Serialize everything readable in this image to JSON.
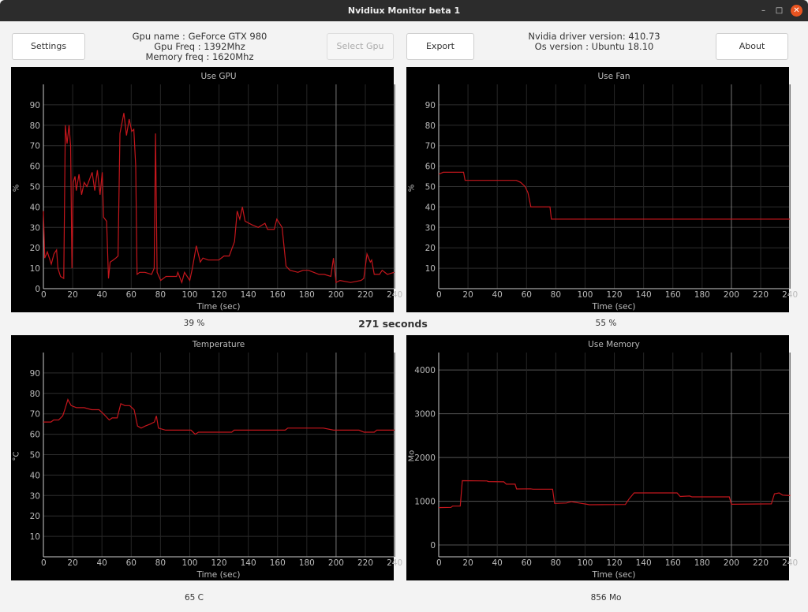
{
  "window": {
    "title": "Nvidiux Monitor beta 1",
    "minimize": "–",
    "maximize": "□",
    "close": "✕"
  },
  "toolbar": {
    "settings": "Settings",
    "select_gpu": "Select Gpu",
    "export": "Export",
    "about": "About"
  },
  "gpu_info": {
    "name": "Gpu name : GeForce GTX 980",
    "freq": "Gpu Freq : 1392Mhz",
    "mem_freq": "Memory freq : 1620Mhz"
  },
  "system_info": {
    "driver": "Nvidia driver version: 410.73",
    "os": "Os version : Ubuntu 18.10"
  },
  "elapsed": "271 seconds",
  "readouts": {
    "gpu": "39 %",
    "fan": "55 %",
    "temperature": "65 C",
    "memory": "856 Mo"
  },
  "line_color": "#c4161c",
  "chart_data": [
    {
      "type": "line",
      "title": "Use GPU",
      "xlabel": "Time (sec)",
      "ylabel": "%",
      "xlim": [
        0,
        239.4
      ],
      "ylim": [
        0,
        100
      ],
      "xticks": [
        "0",
        "20",
        "40",
        "60",
        "80",
        "100",
        "120",
        "140",
        "160",
        "180",
        "200",
        "220",
        "240"
      ],
      "yticks": [
        "0",
        "10",
        "20",
        "30",
        "40",
        "50",
        "60",
        "70",
        "80",
        "90"
      ],
      "ytick_values": [
        0,
        10,
        20,
        30,
        40,
        50,
        60,
        70,
        80,
        90
      ],
      "grid": true,
      "points": [
        [
          0,
          38
        ],
        [
          0.9,
          15
        ],
        [
          2.7,
          18
        ],
        [
          5.4,
          12
        ],
        [
          7.2,
          17
        ],
        [
          9,
          19
        ],
        [
          9.9,
          10
        ],
        [
          11.7,
          6
        ],
        [
          13.9,
          5
        ],
        [
          15,
          80
        ],
        [
          16.2,
          71
        ],
        [
          17.5,
          80
        ],
        [
          18.6,
          70
        ],
        [
          19.5,
          10
        ],
        [
          20.4,
          52
        ],
        [
          21.6,
          55
        ],
        [
          22.5,
          48
        ],
        [
          24.3,
          56
        ],
        [
          26.1,
          46
        ],
        [
          27.9,
          52
        ],
        [
          29.7,
          50
        ],
        [
          33.3,
          57
        ],
        [
          35.1,
          48
        ],
        [
          36.9,
          58
        ],
        [
          38.7,
          46
        ],
        [
          40.2,
          57
        ],
        [
          41.1,
          35
        ],
        [
          43.2,
          33
        ],
        [
          44.5,
          5
        ],
        [
          45.6,
          13
        ],
        [
          47.7,
          14
        ],
        [
          49.5,
          15
        ],
        [
          51,
          16
        ],
        [
          52.3,
          76
        ],
        [
          55,
          86
        ],
        [
          56.8,
          75
        ],
        [
          58.6,
          83
        ],
        [
          60.4,
          77
        ],
        [
          61.8,
          78
        ],
        [
          63.1,
          60
        ],
        [
          64,
          7
        ],
        [
          65.8,
          8
        ],
        [
          69.4,
          8
        ],
        [
          73.9,
          7
        ],
        [
          75.7,
          10
        ],
        [
          76.6,
          76
        ],
        [
          77.7,
          8
        ],
        [
          80.2,
          4
        ],
        [
          83.8,
          6
        ],
        [
          87.4,
          6
        ],
        [
          91,
          6
        ],
        [
          91.9,
          8
        ],
        [
          94.6,
          3
        ],
        [
          96.4,
          8
        ],
        [
          100,
          4
        ],
        [
          101.8,
          10
        ],
        [
          104.5,
          21
        ],
        [
          107.2,
          13
        ],
        [
          109,
          15
        ],
        [
          112.6,
          14
        ],
        [
          116.2,
          14
        ],
        [
          119.8,
          14
        ],
        [
          123.4,
          16
        ],
        [
          127,
          16
        ],
        [
          130.6,
          23
        ],
        [
          132.4,
          38
        ],
        [
          134.2,
          34
        ],
        [
          136,
          40
        ],
        [
          137.8,
          33
        ],
        [
          143.2,
          31
        ],
        [
          146.8,
          30
        ],
        [
          151.4,
          32
        ],
        [
          153.2,
          29
        ],
        [
          157.7,
          29
        ],
        [
          159.5,
          34
        ],
        [
          163.1,
          30
        ],
        [
          165.8,
          11
        ],
        [
          168.5,
          9
        ],
        [
          173.9,
          8
        ],
        [
          177.5,
          9
        ],
        [
          181.1,
          9
        ],
        [
          184.7,
          8
        ],
        [
          188.3,
          7
        ],
        [
          191.9,
          7
        ],
        [
          196.4,
          6
        ],
        [
          198.2,
          15
        ],
        [
          200,
          3
        ],
        [
          202.7,
          4
        ],
        [
          209.9,
          3
        ],
        [
          217.1,
          4
        ],
        [
          218.9,
          5
        ],
        [
          221.1,
          17
        ],
        [
          223.4,
          13
        ],
        [
          224.3,
          14
        ],
        [
          226.1,
          7
        ],
        [
          229.7,
          7
        ],
        [
          231.5,
          9
        ],
        [
          235.1,
          7
        ],
        [
          239.6,
          8
        ]
      ]
    },
    {
      "type": "line",
      "title": "Use Fan",
      "xlabel": "Time (sec)",
      "ylabel": "%",
      "xlim": [
        0,
        239.4
      ],
      "ylim": [
        0,
        100
      ],
      "xticks": [
        "0",
        "20",
        "40",
        "60",
        "80",
        "100",
        "120",
        "140",
        "160",
        "180",
        "200",
        "220",
        "240"
      ],
      "yticks": [
        "10",
        "20",
        "30",
        "40",
        "50",
        "60",
        "70",
        "80",
        "90"
      ],
      "ytick_values": [
        10,
        20,
        30,
        40,
        50,
        60,
        70,
        80,
        90
      ],
      "grid": true,
      "points": [
        [
          0,
          56
        ],
        [
          3,
          57
        ],
        [
          17,
          57
        ],
        [
          18,
          53
        ],
        [
          53,
          53
        ],
        [
          56,
          52
        ],
        [
          59,
          50
        ],
        [
          61,
          47
        ],
        [
          63,
          40
        ],
        [
          76,
          40
        ],
        [
          77,
          34
        ],
        [
          240,
          34
        ]
      ]
    },
    {
      "type": "line",
      "title": "Temperature",
      "xlabel": "Time (sec)",
      "ylabel": "°C",
      "xlim": [
        0,
        239.4
      ],
      "ylim": [
        0,
        100
      ],
      "xticks": [
        "0",
        "20",
        "40",
        "60",
        "80",
        "100",
        "120",
        "140",
        "160",
        "180",
        "200",
        "220",
        "240"
      ],
      "yticks": [
        "10",
        "20",
        "30",
        "40",
        "50",
        "60",
        "70",
        "80",
        "90"
      ],
      "ytick_values": [
        10,
        20,
        30,
        40,
        50,
        60,
        70,
        80,
        90
      ],
      "grid": true,
      "points": [
        [
          0,
          66
        ],
        [
          5.2,
          66
        ],
        [
          7,
          67
        ],
        [
          10.4,
          67
        ],
        [
          13.2,
          69
        ],
        [
          14.6,
          72
        ],
        [
          16.7,
          77
        ],
        [
          19,
          74
        ],
        [
          22.6,
          73
        ],
        [
          27.8,
          73
        ],
        [
          33,
          72
        ],
        [
          38,
          72
        ],
        [
          41,
          70
        ],
        [
          45,
          67
        ],
        [
          47,
          68
        ],
        [
          50.4,
          68
        ],
        [
          52.9,
          75
        ],
        [
          55.7,
          74
        ],
        [
          59,
          74
        ],
        [
          62,
          72
        ],
        [
          64.3,
          64
        ],
        [
          66.8,
          63
        ],
        [
          69.6,
          64
        ],
        [
          73,
          65
        ],
        [
          75.8,
          66
        ],
        [
          77.2,
          69
        ],
        [
          78.6,
          63
        ],
        [
          83.5,
          62
        ],
        [
          90.4,
          62
        ],
        [
          100.9,
          62
        ],
        [
          103.7,
          60
        ],
        [
          106,
          61
        ],
        [
          114.8,
          61
        ],
        [
          128.7,
          61
        ],
        [
          130.4,
          62
        ],
        [
          165.2,
          62
        ],
        [
          167,
          63
        ],
        [
          191.3,
          63
        ],
        [
          198.3,
          62
        ],
        [
          215.7,
          62
        ],
        [
          219.1,
          61
        ],
        [
          226.1,
          61
        ],
        [
          227.8,
          62
        ],
        [
          240,
          62
        ]
      ]
    },
    {
      "type": "line",
      "title": "Use Memory",
      "xlabel": "Time (sec)",
      "ylabel": "Mo",
      "xlim": [
        0,
        239.4
      ],
      "ylim": [
        -270,
        4400
      ],
      "xticks": [
        "0",
        "20",
        "40",
        "60",
        "80",
        "100",
        "120",
        "140",
        "160",
        "180",
        "200",
        "220",
        "240"
      ],
      "yticks": [
        "0",
        "1000",
        "2000",
        "3000",
        "4000"
      ],
      "ytick_values": [
        0,
        1000,
        2000,
        3000,
        4000
      ],
      "grid": true,
      "points": [
        [
          0,
          856
        ],
        [
          8.4,
          860
        ],
        [
          9.5,
          890
        ],
        [
          14.7,
          890
        ],
        [
          16.1,
          1470
        ],
        [
          32.9,
          1465
        ],
        [
          34,
          1450
        ],
        [
          44.5,
          1445
        ],
        [
          46.2,
          1390
        ],
        [
          52.2,
          1390
        ],
        [
          53.2,
          1280
        ],
        [
          62.7,
          1285
        ],
        [
          64.5,
          1275
        ],
        [
          77.8,
          1275
        ],
        [
          79.2,
          950
        ],
        [
          87.2,
          960
        ],
        [
          90.7,
          990
        ],
        [
          96,
          960
        ],
        [
          101.2,
          930
        ],
        [
          103,
          920
        ],
        [
          127.5,
          925
        ],
        [
          130,
          1050
        ],
        [
          133.5,
          1190
        ],
        [
          162.9,
          1190
        ],
        [
          165,
          1110
        ],
        [
          171.5,
          1120
        ],
        [
          173,
          1100
        ],
        [
          198.6,
          1100
        ],
        [
          200,
          930
        ],
        [
          227.3,
          940
        ],
        [
          229.4,
          1170
        ],
        [
          232.6,
          1190
        ],
        [
          235,
          1140
        ],
        [
          240.3,
          1130
        ]
      ]
    }
  ]
}
